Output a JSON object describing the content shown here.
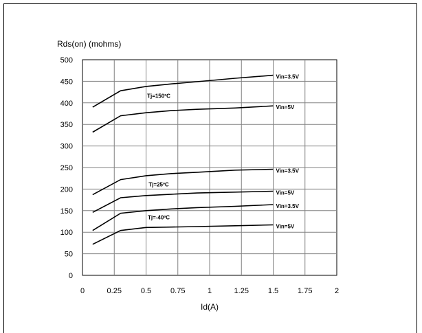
{
  "chart_data": {
    "type": "line",
    "ylabel": "Rds(on) (mohms)",
    "xlabel": "Id(A)",
    "xlim": [
      0,
      2
    ],
    "ylim": [
      0,
      500
    ],
    "x_ticks": [
      "0",
      "0.25",
      "0.5",
      "0.75",
      "1",
      "1.25",
      "1.5",
      "1.75",
      "2"
    ],
    "y_ticks": [
      "0",
      "50",
      "100",
      "150",
      "200",
      "250",
      "300",
      "350",
      "400",
      "450",
      "500"
    ],
    "grid": true,
    "x": [
      0.08,
      0.3,
      0.5,
      0.7,
      0.9,
      1.2,
      1.5
    ],
    "series": [
      {
        "name": "Vin=3.5V",
        "values": [
          390,
          428,
          438,
          444,
          449,
          457,
          464
        ]
      },
      {
        "name": "Vin=5V",
        "values": [
          332,
          370,
          377,
          382,
          385,
          388,
          393
        ]
      },
      {
        "name": "Vin=3.5V",
        "values": [
          187,
          222,
          231,
          236,
          239,
          244,
          246
        ]
      },
      {
        "name": "Vin=5V",
        "values": [
          146,
          180,
          185,
          188,
          191,
          193,
          195
        ]
      },
      {
        "name": "Vin=3.5V",
        "values": [
          104,
          144,
          150,
          154,
          157,
          160,
          164
        ]
      },
      {
        "name": "Vin=5V",
        "values": [
          72,
          104,
          111,
          112,
          113,
          115,
          117
        ]
      }
    ],
    "annotations": [
      {
        "text": "Tj=150ºC",
        "x": 0.6,
        "y": 412
      },
      {
        "text": "Tj=25ºC",
        "x": 0.6,
        "y": 206
      },
      {
        "text": "Tj=-40ºC",
        "x": 0.6,
        "y": 130
      }
    ]
  }
}
